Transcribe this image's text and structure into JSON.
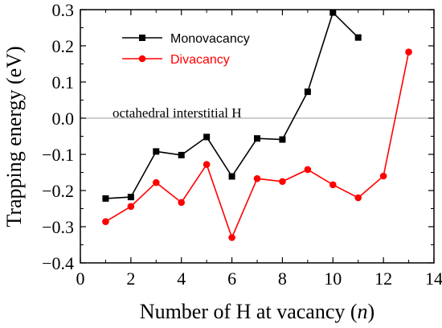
{
  "chart_data": {
    "type": "line",
    "xlabel_prefix": "Number of H at vacancy (",
    "xlabel_var": "n",
    "xlabel_suffix": ")",
    "ylabel": "Trapping energy (eV)",
    "xlim": [
      0,
      14
    ],
    "ylim": [
      -0.4,
      0.3
    ],
    "xticks": [
      0,
      2,
      4,
      6,
      8,
      10,
      12,
      14
    ],
    "yticks": [
      -0.4,
      -0.3,
      -0.2,
      -0.1,
      0.0,
      0.1,
      0.2,
      0.3
    ],
    "ytick_labels": [
      "−0.4",
      "−0.3",
      "−0.2",
      "−0.1",
      "0.0",
      "0.1",
      "0.2",
      "0.3"
    ],
    "grid": false,
    "legend_position": "top-left",
    "reference_line": {
      "y": 0.0,
      "label": "octahedral interstitial H",
      "color": "#999999"
    },
    "series": [
      {
        "name": "Monovacancy",
        "color": "#000000",
        "marker": "square",
        "x": [
          1,
          2,
          3,
          4,
          5,
          6,
          7,
          8,
          9,
          10,
          11
        ],
        "y": [
          -0.222,
          -0.218,
          -0.092,
          -0.102,
          -0.052,
          -0.161,
          -0.056,
          -0.059,
          0.073,
          0.292,
          0.223
        ]
      },
      {
        "name": "Divacancy",
        "color": "#ff0000",
        "marker": "circle",
        "x": [
          1,
          2,
          3,
          4,
          5,
          6,
          7,
          8,
          9,
          10,
          11,
          12,
          13
        ],
        "y": [
          -0.286,
          -0.244,
          -0.178,
          -0.233,
          -0.128,
          -0.33,
          -0.167,
          -0.175,
          -0.142,
          -0.184,
          -0.22,
          -0.16,
          0.183
        ]
      }
    ]
  }
}
